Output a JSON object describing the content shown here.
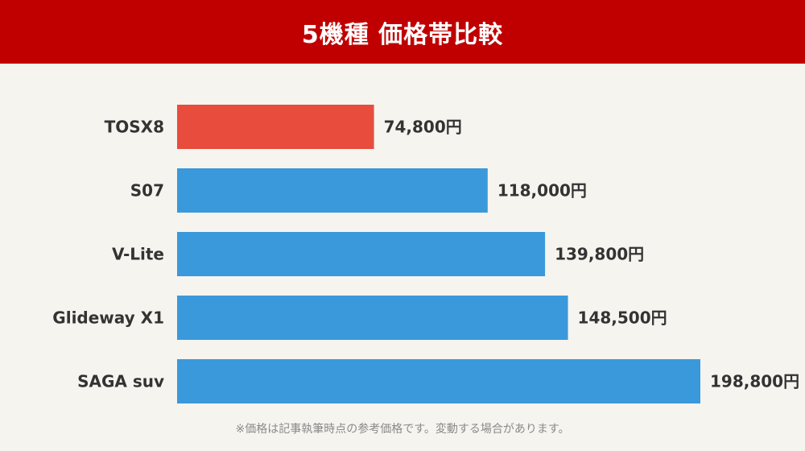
{
  "header": {
    "title": "5機種 価格帯比較"
  },
  "footnote": "※価格は記事執筆時点の参考価格です。変動する場合があります。",
  "colors": {
    "header_bg": "#c00000",
    "highlight_bar": "#e84c3d",
    "bar": "#3a99db",
    "background": "#f6f4ef"
  },
  "chart_data": {
    "type": "bar",
    "orientation": "horizontal",
    "title": "5機種 価格帯比較",
    "xlabel": "",
    "ylabel": "",
    "xlim": [
      0,
      200000
    ],
    "grid": false,
    "legend": "none",
    "unit": "円",
    "categories": [
      "TOSX8",
      "S07",
      "V-Lite",
      "Glideway X1",
      "SAGA suv"
    ],
    "values": [
      74800,
      118000,
      139800,
      148500,
      198800
    ],
    "value_labels": [
      "74,800円",
      "118,000円",
      "139,800円",
      "148,500円",
      "198,800円"
    ],
    "highlight_index": 0
  }
}
